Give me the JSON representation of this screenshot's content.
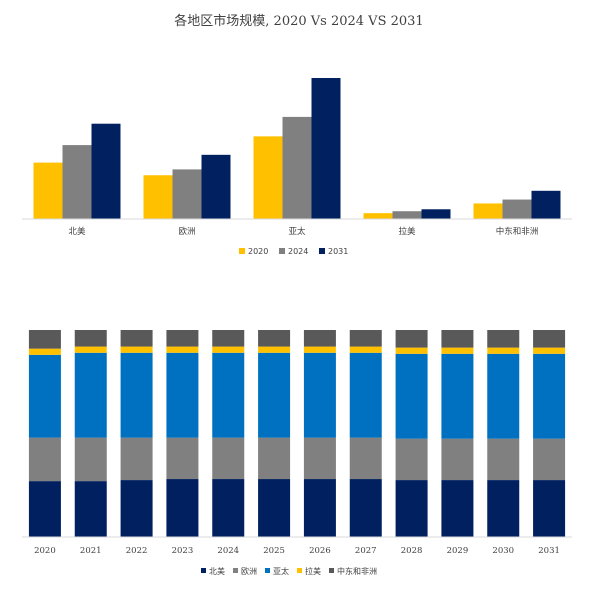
{
  "colors": {
    "navy": "#002060",
    "gray": "#808080",
    "blue": "#0070C0",
    "yellow": "#FFC000",
    "dark": "#595959",
    "gold": "#FFC000"
  },
  "chart_data": [
    {
      "type": "bar",
      "title": "各地区市场规模, 2020 Vs 2024 VS 2031",
      "categories": [
        "北美",
        "欧洲",
        "亚太",
        "拉美",
        "中东和非洲"
      ],
      "ylim": [
        0,
        145
      ],
      "grid": false,
      "legend_position": "bottom",
      "series": [
        {
          "name": "2020",
          "color": "#FFC000",
          "values": [
            58,
            45,
            85,
            6,
            16
          ]
        },
        {
          "name": "2024",
          "color": "#808080",
          "values": [
            76,
            51,
            105,
            8,
            20
          ]
        },
        {
          "name": "2031",
          "color": "#002060",
          "values": [
            98,
            66,
            145,
            10,
            29
          ]
        }
      ]
    },
    {
      "type": "bar",
      "stacked": true,
      "percent": true,
      "title": "",
      "categories": [
        "2020",
        "2021",
        "2022",
        "2023",
        "2024",
        "2025",
        "2026",
        "2027",
        "2028",
        "2029",
        "2030",
        "2031"
      ],
      "ylim": [
        0,
        100
      ],
      "grid": false,
      "legend_position": "bottom",
      "series": [
        {
          "name": "北美",
          "color": "#002060",
          "values": [
            27,
            27,
            27.5,
            28,
            28,
            28,
            28,
            28,
            27.5,
            27.5,
            27.5,
            27.5
          ]
        },
        {
          "name": "欧洲",
          "color": "#808080",
          "values": [
            21,
            21,
            20.5,
            20,
            20,
            20,
            20,
            20,
            20,
            20,
            20,
            20
          ]
        },
        {
          "name": "亚太",
          "color": "#0070C0",
          "values": [
            40,
            41,
            41,
            41,
            41,
            41,
            41,
            41,
            41,
            41,
            41,
            41
          ]
        },
        {
          "name": "拉美",
          "color": "#FFC000",
          "values": [
            3,
            3,
            3,
            3,
            3,
            3,
            3,
            3,
            3,
            3,
            3,
            3
          ]
        },
        {
          "name": "中东和非洲",
          "color": "#595959",
          "values": [
            9,
            8,
            8,
            8,
            8,
            8,
            8,
            8,
            8.5,
            8.5,
            8.5,
            8.5
          ]
        }
      ]
    }
  ]
}
